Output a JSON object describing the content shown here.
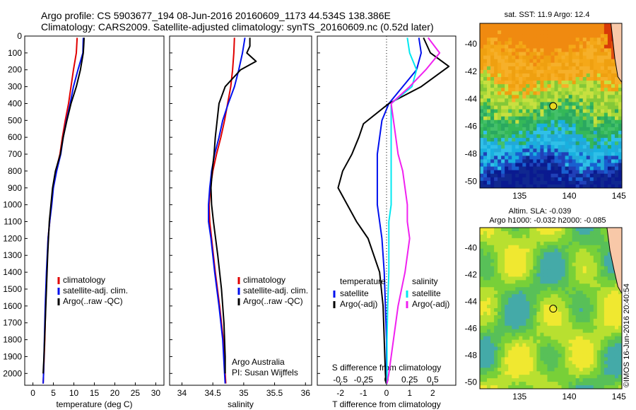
{
  "header": {
    "line1": "Argo profile: CS 5903677_194 08-Jun-2016 20160609_1173 44.534S 138.386E",
    "line2": "Climatology: CARS2009. Satellite-adjusted climatology: synTS_20160609.nc (0.52d later)"
  },
  "colors": {
    "climatology": "#e00000",
    "satellite": "#0010ee",
    "argo": "#000000",
    "salinity_sat": "#00e8f0",
    "salinity_argo": "#f020f0"
  },
  "depth_ticks": [
    "0",
    "100",
    "200",
    "300",
    "400",
    "500",
    "600",
    "700",
    "800",
    "900",
    "1000",
    "1100",
    "1200",
    "1300",
    "1400",
    "1500",
    "1600",
    "1700",
    "1800",
    "1900",
    "2000"
  ],
  "chart_data": [
    {
      "type": "line",
      "xlabel": "temperature (deg C)",
      "xticks": [
        "0",
        "5",
        "10",
        "15",
        "20",
        "25",
        "30"
      ],
      "xlim": [
        -2,
        32
      ],
      "ylim": [
        0,
        2070
      ],
      "legend": [
        "climatology",
        "satellite-adj. clim.",
        "Argo(..raw -QC)"
      ],
      "series": [
        {
          "name": "climatology",
          "x": [
            10.8,
            10.6,
            9.9,
            9.3,
            8.7,
            7.9,
            7.2,
            6.6,
            5.6,
            4.9,
            4.5,
            4.1,
            3.7,
            3.4,
            3.1,
            2.9,
            2.6,
            2.5
          ],
          "y": [
            10,
            100,
            200,
            300,
            400,
            500,
            600,
            700,
            800,
            900,
            1000,
            1100,
            1200,
            1400,
            1600,
            1800,
            2000,
            2060
          ]
        },
        {
          "name": "satellite-adj. clim.",
          "x": [
            12.3,
            12.2,
            11.0,
            9.9,
            9.1,
            8.2,
            7.4,
            6.8,
            5.8,
            5.0,
            4.6,
            4.1,
            3.7,
            3.3,
            3.0,
            2.8,
            2.6,
            2.5
          ],
          "y": [
            10,
            100,
            200,
            300,
            400,
            500,
            600,
            700,
            800,
            900,
            1000,
            1100,
            1200,
            1400,
            1600,
            1800,
            2000,
            2060
          ]
        },
        {
          "name": "Argo(..raw -QC)",
          "x": [
            12.5,
            12.4,
            12.3,
            11.6,
            10.6,
            9.3,
            8.3,
            7.4,
            6.7,
            5.5,
            4.8,
            4.4,
            4.0,
            3.6,
            3.3,
            3.0,
            2.7,
            2.5
          ],
          "y": [
            10,
            60,
            100,
            200,
            300,
            400,
            500,
            600,
            700,
            800,
            900,
            1000,
            1100,
            1300,
            1500,
            1700,
            1900,
            2000
          ]
        }
      ]
    },
    {
      "type": "line",
      "xlabel": "salinity",
      "xticks": [
        "34",
        "34.5",
        "35",
        "35.5",
        "36"
      ],
      "xlim": [
        33.8,
        36.1
      ],
      "ylim": [
        0,
        2070
      ],
      "legend": [
        "climatology",
        "satellite-adj. clim.",
        "Argo(..raw -QC)"
      ],
      "annotation": [
        "Argo Australia",
        "PI: Susan Wijffels"
      ],
      "series": [
        {
          "name": "climatology",
          "x": [
            34.85,
            34.84,
            34.82,
            34.79,
            34.74,
            34.69,
            34.63,
            34.56,
            34.5,
            34.46,
            34.44,
            34.45,
            34.48,
            34.54,
            34.61,
            34.67,
            34.7,
            34.71
          ],
          "y": [
            10,
            100,
            200,
            300,
            400,
            500,
            600,
            700,
            800,
            900,
            1000,
            1100,
            1200,
            1400,
            1600,
            1800,
            2000,
            2060
          ]
        },
        {
          "name": "satellite-adj. clim.",
          "x": [
            35.02,
            34.98,
            34.92,
            34.85,
            34.75,
            34.66,
            34.6,
            34.53,
            34.48,
            34.45,
            34.43,
            34.43,
            34.47,
            34.53,
            34.6,
            34.66,
            34.69,
            34.7
          ],
          "y": [
            10,
            100,
            200,
            300,
            400,
            500,
            600,
            700,
            800,
            900,
            1000,
            1100,
            1200,
            1400,
            1600,
            1800,
            2000,
            2060
          ]
        },
        {
          "name": "Argo(..raw -QC)",
          "x": [
            35.1,
            35.1,
            35.05,
            35.2,
            34.95,
            34.7,
            34.6,
            34.57,
            34.54,
            34.52,
            34.49,
            34.47,
            34.48,
            34.51,
            34.58,
            34.64,
            34.68,
            34.7,
            34.7
          ],
          "y": [
            10,
            60,
            100,
            150,
            200,
            300,
            400,
            500,
            600,
            700,
            800,
            900,
            1000,
            1100,
            1300,
            1500,
            1700,
            1900,
            2000
          ]
        }
      ]
    },
    {
      "type": "line",
      "xlabel": "T difference from climatology",
      "xlabel_top": "S difference from climatology",
      "xticks": [
        "-2",
        "-1",
        "0",
        "1",
        "2"
      ],
      "xticks_top": [
        "-0.5",
        "-0.25",
        "0",
        "0.25",
        "0.5"
      ],
      "xlim": [
        -3,
        3
      ],
      "ylim": [
        0,
        2070
      ],
      "legend_left": {
        "title": "temperature",
        "items": [
          "satellite",
          "Argo(-adj)"
        ]
      },
      "legend_right": {
        "title": "salinity",
        "items": [
          "satellite",
          "Argo(-adj)"
        ]
      },
      "series": [
        {
          "name": "satellite",
          "x": [
            1.4,
            1.5,
            1.3,
            0.7,
            0.1,
            -0.2,
            -0.3,
            -0.4,
            -0.4,
            -0.4,
            -0.4,
            -0.3,
            -0.2,
            -0.1,
            -0.05,
            0,
            0,
            0
          ],
          "y": [
            10,
            100,
            200,
            300,
            400,
            500,
            600,
            700,
            800,
            900,
            1000,
            1100,
            1200,
            1400,
            1600,
            1800,
            2000,
            2060
          ]
        },
        {
          "name": "Argo(-adj)",
          "x": [
            1.6,
            1.9,
            2.7,
            1.5,
            0.1,
            -1.0,
            -1.2,
            -1.5,
            -1.9,
            -2.1,
            -1.7,
            -1.3,
            -0.8,
            -0.3,
            -0.15,
            -0.1,
            -0.05,
            -0.02
          ],
          "y": [
            10,
            100,
            180,
            300,
            400,
            520,
            600,
            700,
            800,
            900,
            1000,
            1100,
            1200,
            1400,
            1600,
            1800,
            2000,
            2060
          ]
        },
        {
          "name": "satellite (salinity)",
          "x": [
            0.9,
            1.0,
            1.3,
            1.1,
            0.2,
            0.2,
            0.2,
            0.2,
            0.2,
            0.2,
            0.2,
            0.1,
            0.1,
            0.1,
            0.05,
            0.02,
            0.02,
            0.02
          ],
          "y": [
            10,
            100,
            200,
            300,
            400,
            500,
            600,
            700,
            800,
            900,
            1000,
            1100,
            1200,
            1400,
            1600,
            1800,
            2000,
            2060
          ]
        },
        {
          "name": "Argo(-adj) (salinity)",
          "x": [
            1.8,
            2.3,
            1.7,
            1.0,
            0.2,
            0.3,
            0.4,
            0.5,
            0.7,
            0.8,
            0.9,
            0.9,
            1.0,
            0.8,
            0.5,
            0.3,
            0.1,
            0.02
          ],
          "y": [
            10,
            100,
            200,
            300,
            400,
            500,
            600,
            700,
            800,
            900,
            1000,
            1100,
            1200,
            1400,
            1600,
            1800,
            2000,
            2060
          ]
        }
      ]
    },
    {
      "type": "heatmap",
      "title": "sat. SST: 11.9  Argo: 12.4",
      "xticks": [
        "135",
        "140",
        "145"
      ],
      "yticks": [
        "-40",
        "-42",
        "-44",
        "-46",
        "-48",
        "-50"
      ],
      "xlim": [
        131,
        145.3
      ],
      "ylim": [
        -50.5,
        -38.5
      ],
      "argo_marker": {
        "lon": 138.386,
        "lat": -44.534
      }
    },
    {
      "type": "heatmap",
      "title_lines": [
        "Altim. SLA: -0.039",
        "Argo h1000: -0.032 h2000: -0.085"
      ],
      "xticks": [
        "135",
        "140",
        "145"
      ],
      "yticks": [
        "-40",
        "-42",
        "-44",
        "-46",
        "-48",
        "-50"
      ],
      "xlim": [
        131,
        145.3
      ],
      "ylim": [
        -50.5,
        -38.5
      ],
      "argo_marker": {
        "lon": 138.386,
        "lat": -44.534
      }
    }
  ],
  "credit": "©IMOS 16-Jun-2016 20:40:54"
}
